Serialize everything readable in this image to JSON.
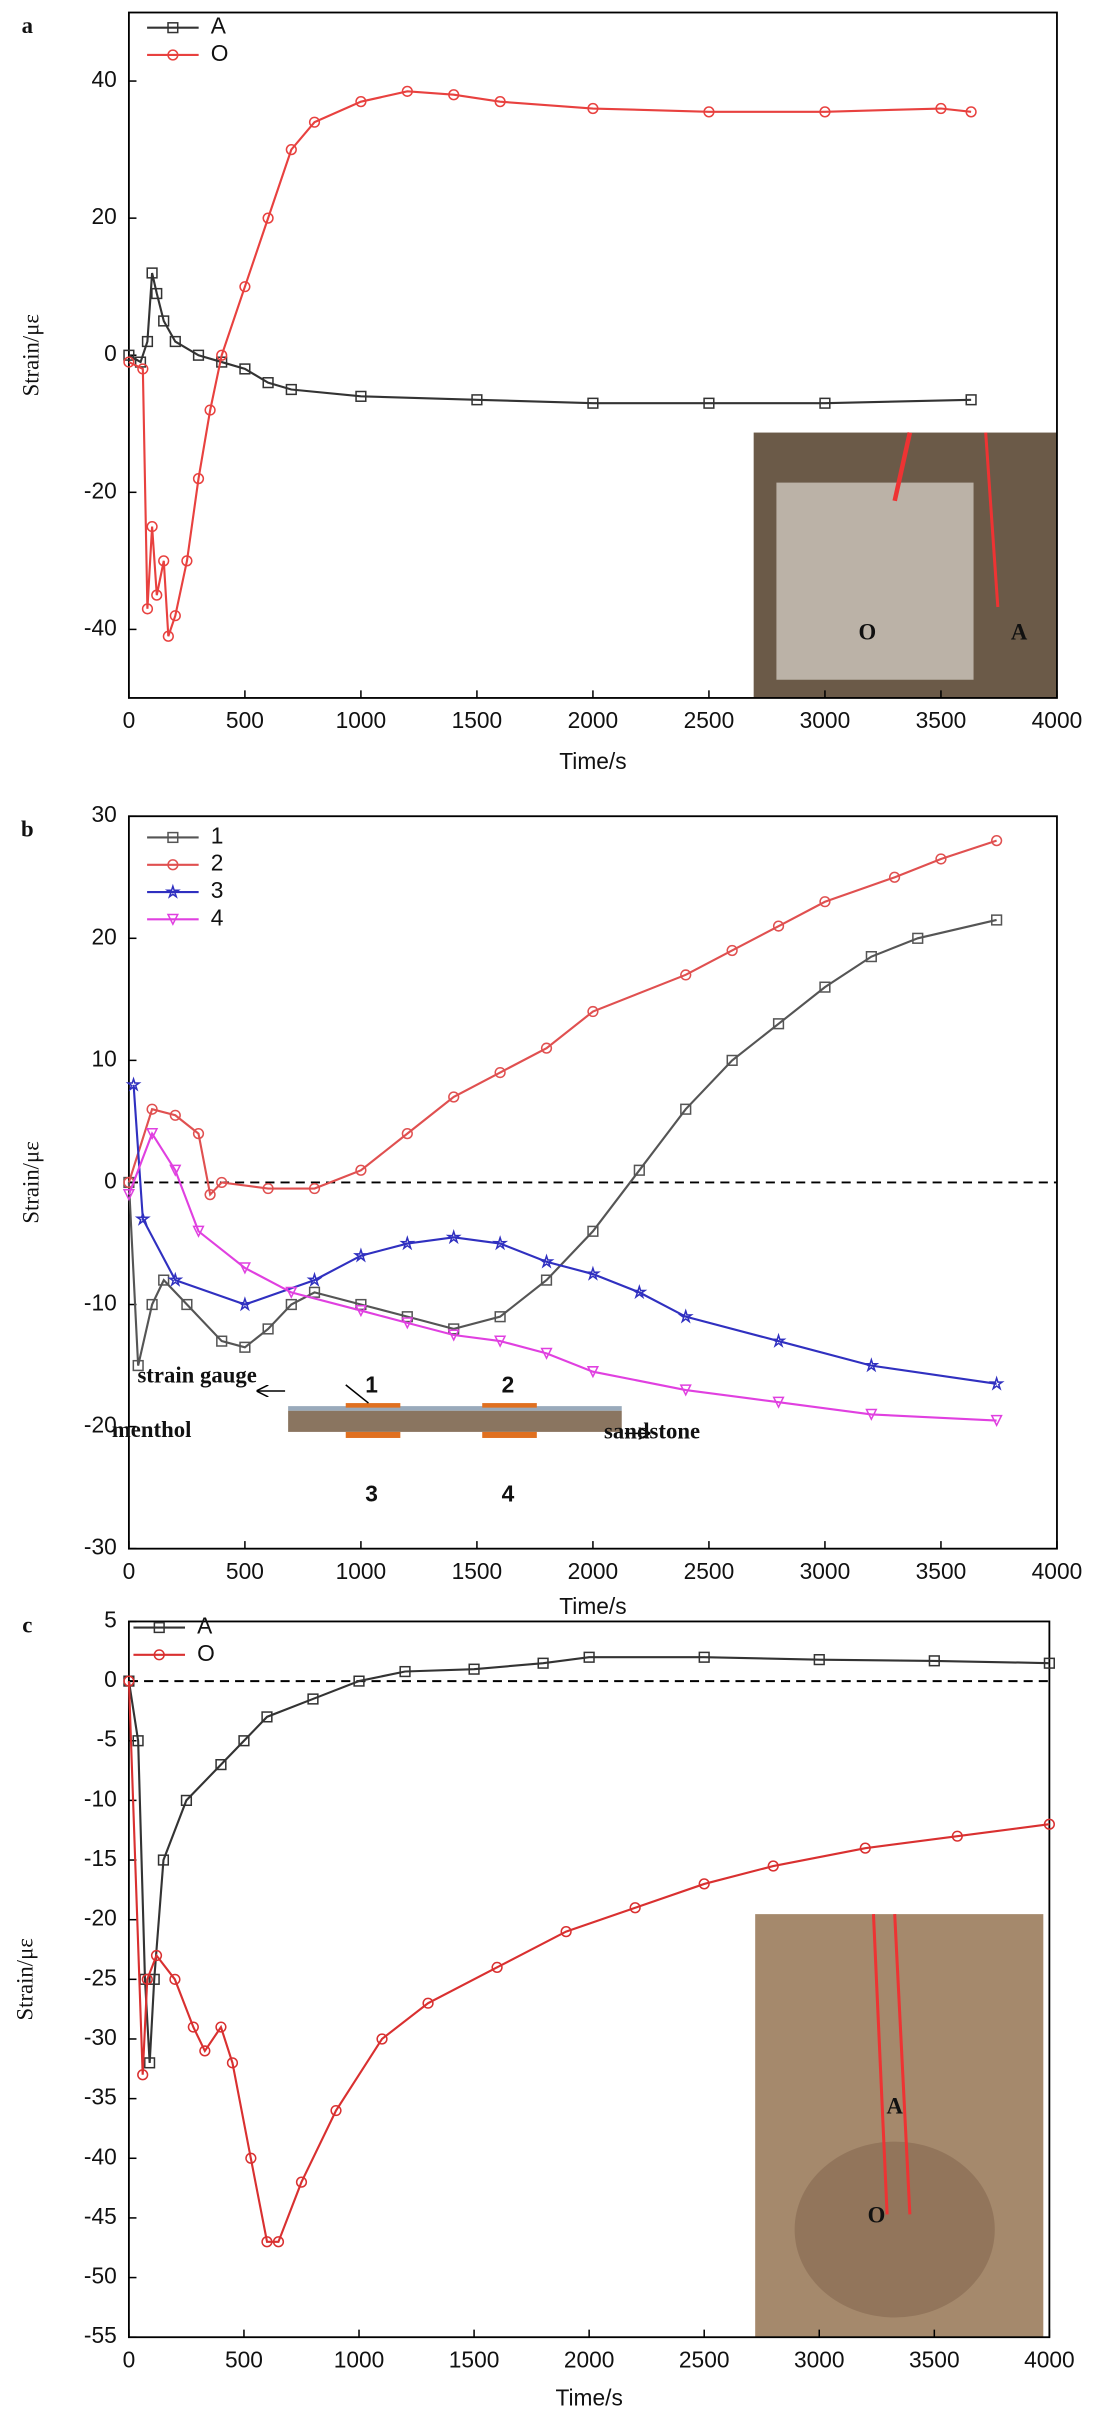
{
  "chart_data": [
    {
      "type": "line",
      "panel_label": "a",
      "x_label": "Time/s",
      "y_label": "Strain/με",
      "xlim": [
        0,
        4000
      ],
      "ylim": [
        -50,
        50
      ],
      "xticks": [
        0,
        500,
        1000,
        1500,
        2000,
        2500,
        3000,
        3500,
        4000
      ],
      "yticks": [
        -40,
        -20,
        0,
        20,
        40
      ],
      "zero_line": false,
      "legend": "upper left",
      "series": [
        {
          "name": "A",
          "color": "#333333",
          "marker": "square",
          "x": [
            0,
            50,
            80,
            100,
            120,
            150,
            200,
            300,
            400,
            500,
            600,
            700,
            1000,
            1500,
            2000,
            2500,
            3000,
            3630
          ],
          "values": [
            0,
            -1,
            2,
            12,
            9,
            5,
            2,
            0,
            -1,
            -2,
            -4,
            -5,
            -6,
            -6.5,
            -7,
            -7,
            -7,
            -6.5
          ]
        },
        {
          "name": "O",
          "color": "#e8413f",
          "marker": "circle",
          "x": [
            0,
            60,
            80,
            100,
            120,
            150,
            170,
            200,
            250,
            300,
            350,
            400,
            500,
            600,
            700,
            800,
            1000,
            1200,
            1400,
            1600,
            2000,
            2500,
            3000,
            3500,
            3630
          ],
          "values": [
            -1,
            -2,
            -37,
            -25,
            -35,
            -30,
            -41,
            -38,
            -30,
            -18,
            -8,
            0,
            10,
            20,
            30,
            34,
            37,
            38.5,
            38,
            37,
            36,
            35.5,
            35.5,
            36,
            35.5
          ]
        }
      ],
      "annotations": [
        "O",
        "A"
      ]
    },
    {
      "type": "line",
      "panel_label": "b",
      "x_label": "Time/s",
      "y_label": "Strain/με",
      "xlim": [
        0,
        4000
      ],
      "ylim": [
        -30,
        30
      ],
      "xticks": [
        0,
        500,
        1000,
        1500,
        2000,
        2500,
        3000,
        3500,
        4000
      ],
      "yticks": [
        -30,
        -20,
        -10,
        0,
        10,
        20,
        30
      ],
      "zero_line": true,
      "legend": "upper left",
      "series": [
        {
          "name": "1",
          "color": "#555555",
          "marker": "square",
          "x": [
            0,
            40,
            100,
            150,
            250,
            400,
            500,
            600,
            700,
            800,
            1000,
            1200,
            1400,
            1600,
            1800,
            2000,
            2200,
            2400,
            2600,
            2800,
            3000,
            3200,
            3400,
            3740
          ],
          "values": [
            0,
            -15,
            -10,
            -8,
            -10,
            -13,
            -13.5,
            -12,
            -10,
            -9,
            -10,
            -11,
            -12,
            -11,
            -8,
            -4,
            1,
            6,
            10,
            13,
            16,
            18.5,
            20,
            21.5
          ]
        },
        {
          "name": "2",
          "color": "#e05050",
          "marker": "circle",
          "x": [
            0,
            100,
            200,
            300,
            350,
            400,
            600,
            800,
            1000,
            1200,
            1400,
            1600,
            1800,
            2000,
            2400,
            2600,
            2800,
            3000,
            3300,
            3500,
            3740
          ],
          "values": [
            0,
            6,
            5.5,
            4,
            -1,
            0,
            -0.5,
            -0.5,
            1,
            4,
            7,
            9,
            11,
            14,
            17,
            19,
            21,
            23,
            25,
            26.5,
            28
          ]
        },
        {
          "name": "3",
          "color": "#3030c0",
          "marker": "star",
          "x": [
            20,
            60,
            200,
            500,
            800,
            1000,
            1200,
            1400,
            1600,
            1800,
            2000,
            2200,
            2400,
            2800,
            3200,
            3740
          ],
          "values": [
            8,
            -3,
            -8,
            -10,
            -8,
            -6,
            -5,
            -4.5,
            -5,
            -6.5,
            -7.5,
            -9,
            -11,
            -13,
            -15,
            -16.5
          ]
        },
        {
          "name": "4",
          "color": "#e040e0",
          "marker": "triangle",
          "x": [
            0,
            100,
            200,
            300,
            500,
            700,
            1000,
            1200,
            1400,
            1600,
            1800,
            2000,
            2400,
            2800,
            3200,
            3740
          ],
          "values": [
            -1,
            4,
            1,
            -4,
            -7,
            -9,
            -10.5,
            -11.5,
            -12.5,
            -13,
            -14,
            -15.5,
            -17,
            -18,
            -19,
            -19.5
          ]
        }
      ],
      "annotations": [
        "strain gauge",
        "1",
        "2",
        "menthol",
        "sandstone",
        "3",
        "4"
      ]
    },
    {
      "type": "line",
      "panel_label": "c",
      "x_label": "Time/s",
      "y_label": "Strain/με",
      "xlim": [
        0,
        4000
      ],
      "ylim": [
        -55,
        5
      ],
      "xticks": [
        0,
        500,
        1000,
        1500,
        2000,
        2500,
        3000,
        3500,
        4000
      ],
      "yticks": [
        -55,
        -50,
        -45,
        -40,
        -35,
        -30,
        -25,
        -20,
        -15,
        -10,
        -5,
        0,
        5
      ],
      "zero_line": true,
      "legend": "upper left",
      "series": [
        {
          "name": "A",
          "color": "#333333",
          "marker": "square",
          "x": [
            0,
            40,
            70,
            90,
            110,
            150,
            250,
            400,
            500,
            600,
            800,
            1000,
            1200,
            1500,
            1800,
            2000,
            2500,
            3000,
            3500,
            4000
          ],
          "values": [
            0,
            -5,
            -25,
            -32,
            -25,
            -15,
            -10,
            -7,
            -5,
            -3,
            -1.5,
            0,
            0.8,
            1,
            1.5,
            2,
            2,
            1.8,
            1.7,
            1.5
          ]
        },
        {
          "name": "O",
          "color": "#d93030",
          "marker": "circle",
          "x": [
            0,
            60,
            80,
            120,
            200,
            280,
            330,
            400,
            450,
            530,
            600,
            650,
            750,
            900,
            1100,
            1300,
            1600,
            1900,
            2200,
            2500,
            2800,
            3200,
            3600,
            4000
          ],
          "values": [
            0,
            -33,
            -25,
            -23,
            -25,
            -29,
            -31,
            -29,
            -32,
            -40,
            -47,
            -47,
            -42,
            -36,
            -30,
            -27,
            -24,
            -21,
            -19,
            -17,
            -15.5,
            -14,
            -13,
            -12
          ]
        }
      ],
      "annotations": [
        "A",
        "O"
      ]
    }
  ]
}
